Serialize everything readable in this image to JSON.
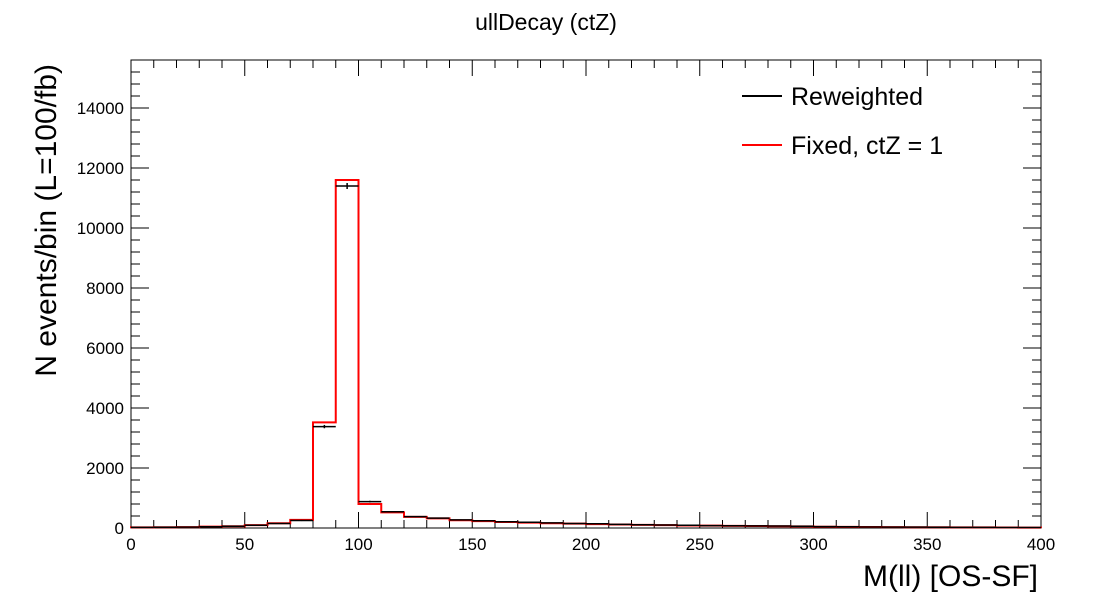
{
  "chart_data": {
    "type": "histogram",
    "title": "ullDecay (ctZ)",
    "xlabel": "M(ll) [OS-SF]",
    "ylabel": "N events/bin (L=100/fb)",
    "xlim": [
      0,
      400
    ],
    "ylim": [
      0,
      15600
    ],
    "x_ticks": [
      0,
      50,
      100,
      150,
      200,
      250,
      300,
      350,
      400
    ],
    "y_ticks": [
      0,
      2000,
      4000,
      6000,
      8000,
      10000,
      12000,
      14000
    ],
    "bin_width": 10,
    "bin_edges": [
      0,
      10,
      20,
      30,
      40,
      50,
      60,
      70,
      80,
      90,
      100,
      110,
      120,
      130,
      140,
      150,
      160,
      170,
      180,
      190,
      200,
      210,
      220,
      230,
      240,
      250,
      260,
      270,
      280,
      290,
      300,
      310,
      320,
      330,
      340,
      350,
      360,
      370,
      380,
      390,
      400
    ],
    "grid": false,
    "legend_position": "top-right",
    "series": [
      {
        "name": "Reweighted",
        "color": "#000000",
        "style": "points-with-errors",
        "values": [
          20,
          25,
          30,
          40,
          60,
          90,
          150,
          250,
          3380,
          11400,
          880,
          540,
          380,
          330,
          270,
          240,
          210,
          190,
          170,
          150,
          140,
          120,
          110,
          100,
          90,
          80,
          75,
          70,
          65,
          60,
          45,
          40,
          35,
          30,
          28,
          25,
          22,
          20,
          18,
          15
        ],
        "errors": [
          5,
          5,
          6,
          7,
          9,
          11,
          14,
          18,
          55,
          100,
          28,
          22,
          18,
          17,
          15,
          14,
          13,
          13,
          12,
          11,
          11,
          10,
          10,
          9,
          9,
          8,
          8,
          8,
          7,
          7,
          6,
          6,
          5,
          5,
          5,
          5,
          4,
          4,
          4,
          4
        ]
      },
      {
        "name": "Fixed, ctZ = 1",
        "color": "#ff0000",
        "style": "step",
        "values": [
          20,
          25,
          30,
          45,
          60,
          95,
          160,
          270,
          3520,
          11600,
          800,
          520,
          370,
          320,
          260,
          230,
          200,
          180,
          160,
          145,
          130,
          115,
          105,
          95,
          85,
          78,
          72,
          66,
          60,
          55,
          42,
          38,
          33,
          30,
          27,
          24,
          21,
          19,
          17,
          14
        ]
      }
    ]
  }
}
